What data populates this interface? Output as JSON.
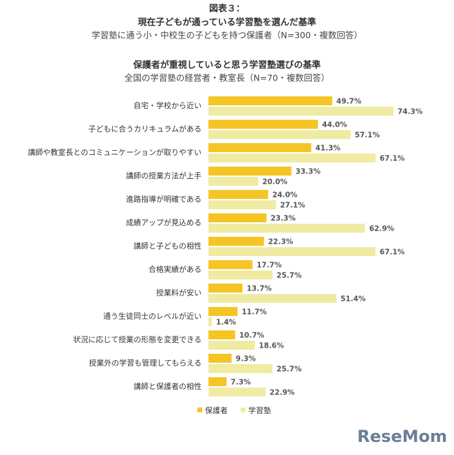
{
  "chart_data": {
    "type": "bar",
    "orientation": "horizontal",
    "figure_label": "図表３：",
    "title": "現在子どもが通っている学習塾を選んだ基準",
    "subtitle": "学習塾に通う小・中校生の子どもを持つ保護者（N=300・複数回答）",
    "title2": "保護者が重視していると思う学習塾選びの基準",
    "subtitle2": "全国の学習塾の経営者・教室長（N=70・複数回答）",
    "categories": [
      "自宅・学校から近い",
      "子どもに合うカリキュラムがある",
      "講師や教室長とのコミュニケーションが取りやすい",
      "講師の授業方法が上手",
      "進路指導が明確である",
      "成績アップが見込める",
      "講師と子どもの相性",
      "合格実績がある",
      "授業料が安い",
      "通う生徒同士のレベルが近い",
      "状況に応じて授業の形態を変更できる",
      "授業外の学習も管理してもらえる",
      "講師と保護者の相性"
    ],
    "series": [
      {
        "name": "保護者",
        "color": "#f5c526",
        "values": [
          49.7,
          44.0,
          41.3,
          33.3,
          24.0,
          23.3,
          22.3,
          17.7,
          13.7,
          11.7,
          10.7,
          9.3,
          7.3
        ],
        "value_labels": [
          "49.7%",
          "44.0%",
          "41.3%",
          "33.3%",
          "24.0%",
          "23.3%",
          "22.3%",
          "17.7%",
          "13.7%",
          "11.7%",
          "10.7%",
          "9.3%",
          "7.3%"
        ]
      },
      {
        "name": "学習塾",
        "color": "#f0eba3",
        "values": [
          74.3,
          57.1,
          67.1,
          20.0,
          27.1,
          62.9,
          67.1,
          25.7,
          51.4,
          1.4,
          18.6,
          25.7,
          22.9
        ],
        "value_labels": [
          "74.3%",
          "57.1%",
          "67.1%",
          "20.0%",
          "27.1%",
          "62.9%",
          "67.1%",
          "25.7%",
          "51.4%",
          "1.4%",
          "18.6%",
          "25.7%",
          "22.9%"
        ]
      }
    ],
    "watermark": "ReseMom"
  }
}
